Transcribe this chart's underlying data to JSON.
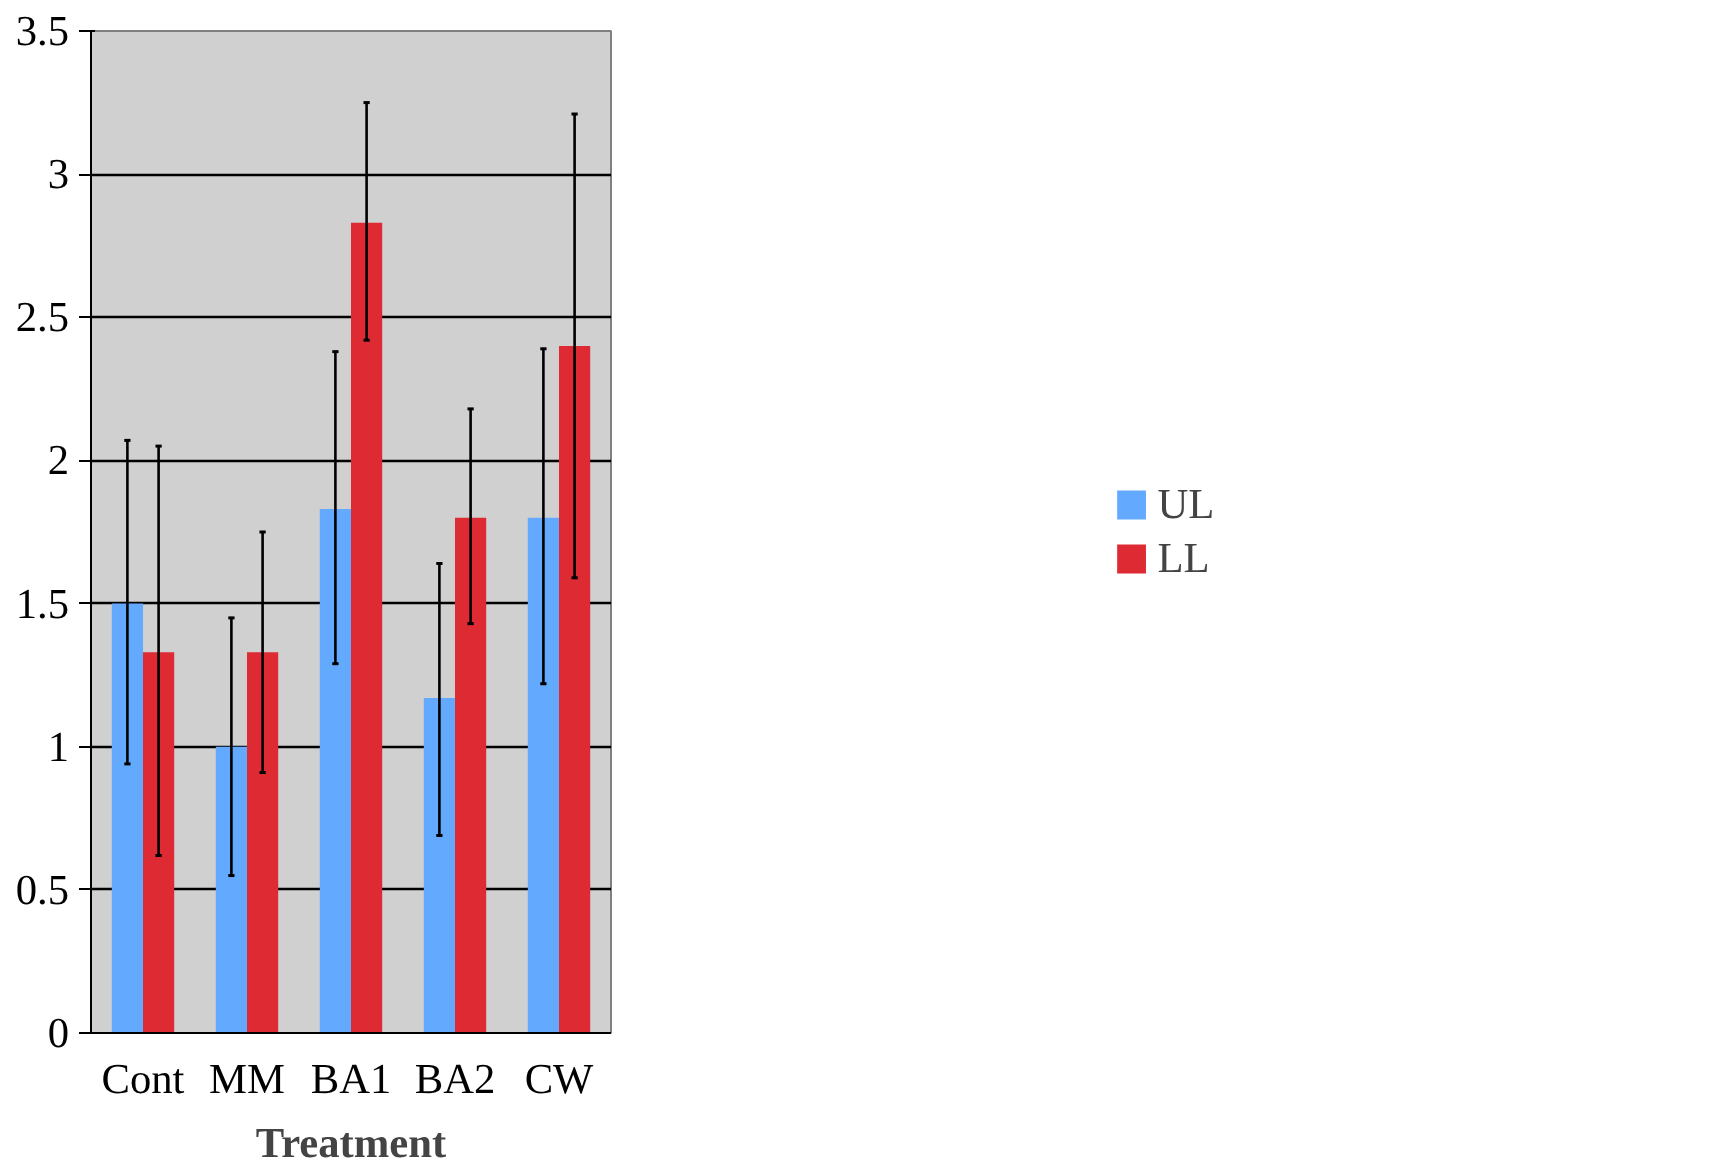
{
  "chart_data": {
    "type": "bar",
    "xlabel": "Treatment",
    "categories": [
      "Cont",
      "MM",
      "BA1",
      "BA2",
      "CW"
    ],
    "series": [
      {
        "name": "UL",
        "color": "#63aaff",
        "values": [
          1.5,
          1.0,
          1.83,
          1.17,
          1.8
        ],
        "errors": [
          [
            0.94,
            2.07
          ],
          [
            0.55,
            1.45
          ],
          [
            1.29,
            2.38
          ],
          [
            0.69,
            1.64
          ],
          [
            1.22,
            2.39
          ]
        ]
      },
      {
        "name": "LL",
        "color": "#dd2a33",
        "values": [
          1.33,
          1.33,
          2.83,
          1.8,
          2.4
        ],
        "errors": [
          [
            0.62,
            2.05
          ],
          [
            0.91,
            1.75
          ],
          [
            2.42,
            3.25
          ],
          [
            1.43,
            2.18
          ],
          [
            1.59,
            3.21
          ]
        ]
      }
    ],
    "ylim": [
      0,
      3.5
    ],
    "yticks": [
      0,
      0.5,
      1,
      1.5,
      2,
      2.5,
      3,
      3.5
    ],
    "grid": "y",
    "legend": "right"
  }
}
